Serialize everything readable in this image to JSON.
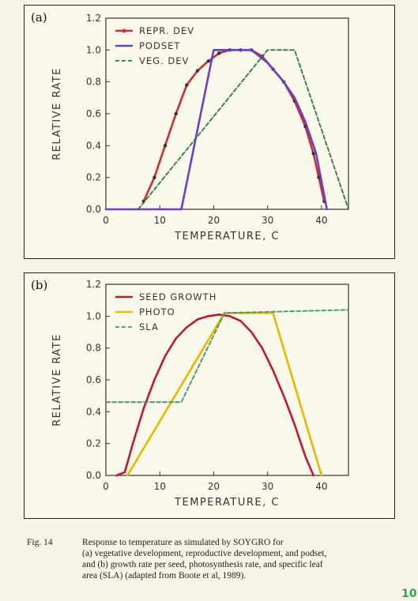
{
  "chart_data": [
    {
      "panel_label": "(a)",
      "type": "line",
      "title": "",
      "xlabel": "TEMPERATURE, C",
      "ylabel": "RELATIVE RATE",
      "xlim": [
        0,
        45
      ],
      "ylim": [
        0,
        1.2
      ],
      "xticks": [
        0,
        10,
        20,
        30,
        40
      ],
      "yticks": [
        0.0,
        0.2,
        0.4,
        0.6,
        0.8,
        1.0,
        1.2
      ],
      "legend_position": "top-left",
      "series": [
        {
          "name": "REPR. DEV",
          "color": "#d42a2a",
          "style": "solid-dots",
          "points": [
            [
              7,
              0.05
            ],
            [
              9,
              0.2
            ],
            [
              11,
              0.4
            ],
            [
              13,
              0.6
            ],
            [
              15,
              0.78
            ],
            [
              17,
              0.87
            ],
            [
              19,
              0.93
            ],
            [
              21,
              0.98
            ],
            [
              23,
              1.0
            ],
            [
              25,
              1.0
            ],
            [
              27,
              1.0
            ],
            [
              29,
              0.96
            ],
            [
              31,
              0.88
            ],
            [
              33,
              0.8
            ],
            [
              35,
              0.68
            ],
            [
              37,
              0.52
            ],
            [
              38.5,
              0.35
            ],
            [
              39.5,
              0.2
            ],
            [
              40.5,
              0.05
            ]
          ]
        },
        {
          "name": "PODSET",
          "color": "#6a3fc4",
          "style": "solid",
          "points": [
            [
              0,
              0
            ],
            [
              14,
              0
            ],
            [
              20,
              1.0
            ],
            [
              27,
              1.0
            ],
            [
              30,
              0.92
            ],
            [
              33,
              0.8
            ],
            [
              35,
              0.7
            ],
            [
              37,
              0.55
            ],
            [
              39,
              0.35
            ],
            [
              41,
              0
            ]
          ]
        },
        {
          "name": "VEG. DEV",
          "color": "#2a7a3a",
          "style": "dashed",
          "points": [
            [
              6,
              0
            ],
            [
              30,
              1.0
            ],
            [
              35,
              1.0
            ],
            [
              45,
              0
            ]
          ]
        }
      ]
    },
    {
      "panel_label": "(b)",
      "type": "line",
      "title": "",
      "xlabel": "TEMPERATURE, C",
      "ylabel": "RELATIVE RATE",
      "xlim": [
        0,
        45
      ],
      "ylim": [
        0,
        1.2
      ],
      "xticks": [
        0,
        10,
        20,
        30,
        40
      ],
      "yticks": [
        0.0,
        0.2,
        0.4,
        0.6,
        0.8,
        1.0,
        1.2
      ],
      "legend_position": "top-left",
      "series": [
        {
          "name": "SEED GROWTH",
          "color": "#c0192a",
          "style": "solid",
          "points": [
            [
              2,
              0
            ],
            [
              3.5,
              0.02
            ],
            [
              5,
              0.2
            ],
            [
              7,
              0.42
            ],
            [
              9,
              0.6
            ],
            [
              11,
              0.75
            ],
            [
              13,
              0.86
            ],
            [
              15,
              0.93
            ],
            [
              17,
              0.98
            ],
            [
              19,
              1.0
            ],
            [
              21,
              1.01
            ],
            [
              23,
              1.0
            ],
            [
              25,
              0.97
            ],
            [
              27,
              0.9
            ],
            [
              29,
              0.8
            ],
            [
              31,
              0.66
            ],
            [
              33,
              0.5
            ],
            [
              35,
              0.32
            ],
            [
              37,
              0.12
            ],
            [
              38.5,
              0
            ]
          ]
        },
        {
          "name": "PHOTO",
          "color": "#e6b800",
          "style": "solid",
          "points": [
            [
              4,
              0
            ],
            [
              22,
              1.02
            ],
            [
              31,
              1.02
            ],
            [
              40,
              0
            ]
          ]
        },
        {
          "name": "SLA",
          "color": "#3a9a5a",
          "style": "dashed",
          "points": [
            [
              0,
              0.46
            ],
            [
              14,
              0.46
            ],
            [
              22,
              1.02
            ],
            [
              45,
              1.04
            ]
          ]
        }
      ]
    }
  ],
  "caption": {
    "figure_number": "Fig. 14",
    "lines": [
      "Response to temperature as simulated by SOYGRO for",
      "(a) vegetative development, reproductive development, and podset,",
      "and (b) growth rate per seed, photosynthesis rate, and specific leaf",
      "area (SLA) (adapted from Boote et al, 1989)."
    ]
  },
  "corner_mark": "10"
}
